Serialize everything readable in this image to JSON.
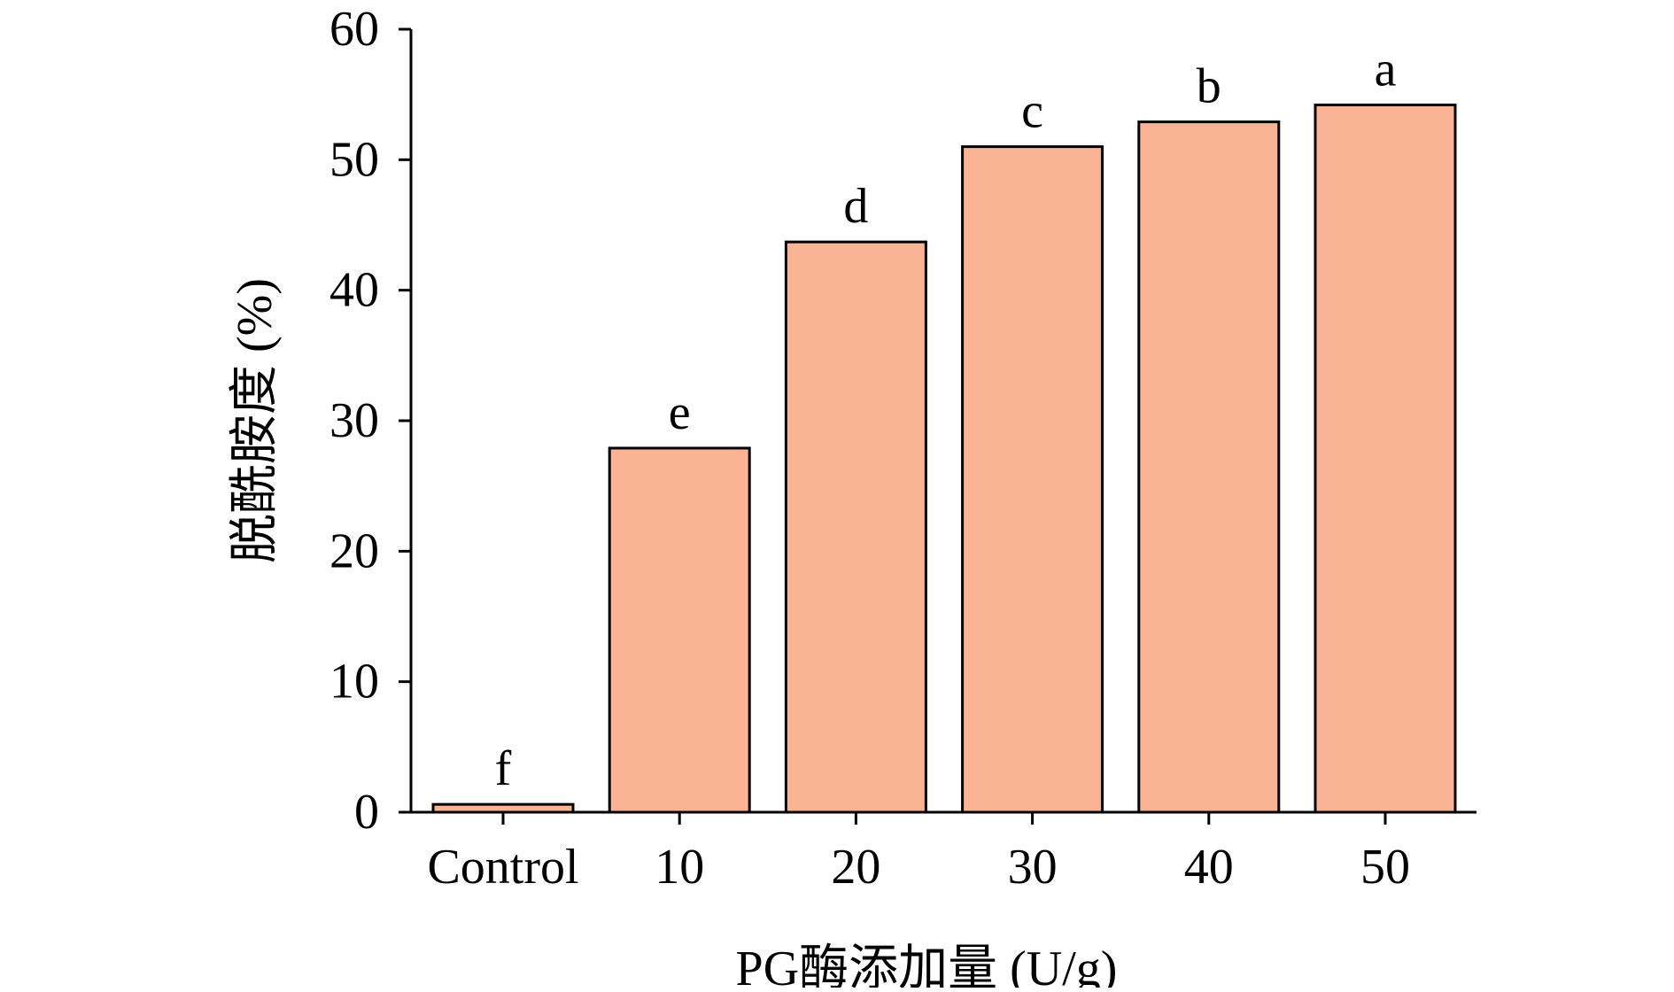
{
  "chart_data": {
    "type": "bar",
    "title": "",
    "xlabel": "PG酶添加量 (U/g)",
    "ylabel": "脱酰胺度 (%)",
    "categories": [
      "Control",
      "10",
      "20",
      "30",
      "40",
      "50"
    ],
    "values": [
      0.6,
      27.9,
      43.7,
      51.0,
      52.9,
      54.2
    ],
    "significance_labels": [
      "f",
      "e",
      "d",
      "c",
      "b",
      "a"
    ],
    "ylim": [
      0,
      60
    ],
    "yticks": [
      0,
      10,
      20,
      30,
      40,
      50,
      60
    ],
    "grid": false,
    "legend": "none",
    "bar_color": "#fab394",
    "edge_color": "#000000"
  }
}
